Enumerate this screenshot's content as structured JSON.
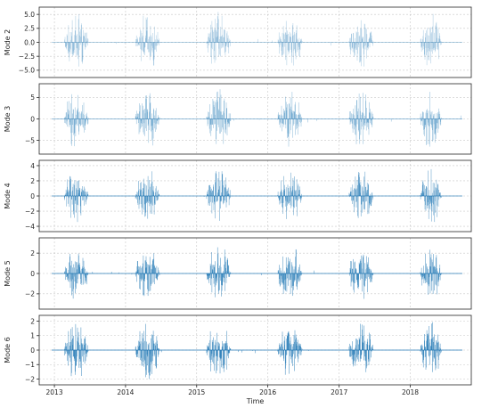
{
  "chart_data": {
    "type": "line",
    "xlabel": "Time",
    "x_ticks": [
      "2013",
      "2014",
      "2015",
      "2016",
      "2017",
      "2018"
    ],
    "x_range": [
      "2012-10-15",
      "2018-11-10"
    ],
    "color": "#1f77b4",
    "grid": true,
    "active_windows": [
      [
        "2013-02-20",
        "2013-06-25"
      ],
      [
        "2014-02-20",
        "2014-06-25"
      ],
      [
        "2015-02-20",
        "2015-06-25"
      ],
      [
        "2016-02-20",
        "2016-06-25"
      ],
      [
        "2017-02-20",
        "2017-06-25"
      ],
      [
        "2018-02-20",
        "2018-06-10"
      ]
    ],
    "panels": [
      {
        "ylabel": "Mode 2",
        "opacity": 0.45,
        "ylim": [
          -6.3,
          6.3
        ],
        "yticks": [
          -5.0,
          -2.5,
          0.0,
          2.5,
          5.0
        ],
        "ytick_labels": [
          "−5.0",
          "−2.5",
          "0.0",
          "2.5",
          "5.0"
        ],
        "peak": 5.6
      },
      {
        "ylabel": "Mode 3",
        "opacity": 0.6,
        "ylim": [
          -8.2,
          8.2
        ],
        "yticks": [
          -5,
          0,
          5
        ],
        "ytick_labels": [
          "−5",
          "0",
          "5"
        ],
        "peak": 7.3
      },
      {
        "ylabel": "Mode 4",
        "opacity": 0.85,
        "ylim": [
          -4.7,
          4.7
        ],
        "yticks": [
          -4,
          -2,
          0,
          2,
          4
        ],
        "ytick_labels": [
          "−4",
          "−2",
          "0",
          "2",
          "4"
        ],
        "peak": 4.0
      },
      {
        "ylabel": "Mode 5",
        "opacity": 0.95,
        "ylim": [
          -3.5,
          3.5
        ],
        "yticks": [
          -2,
          0,
          2
        ],
        "ytick_labels": [
          "−2",
          "0",
          "2"
        ],
        "peak": 3.0
      },
      {
        "ylabel": "Mode 6",
        "opacity": 1.0,
        "ylim": [
          -2.4,
          2.4
        ],
        "yticks": [
          -2,
          -1,
          0,
          1,
          2
        ],
        "ytick_labels": [
          "−2",
          "−1",
          "0",
          "1",
          "2"
        ],
        "peak": 2.2
      }
    ]
  }
}
